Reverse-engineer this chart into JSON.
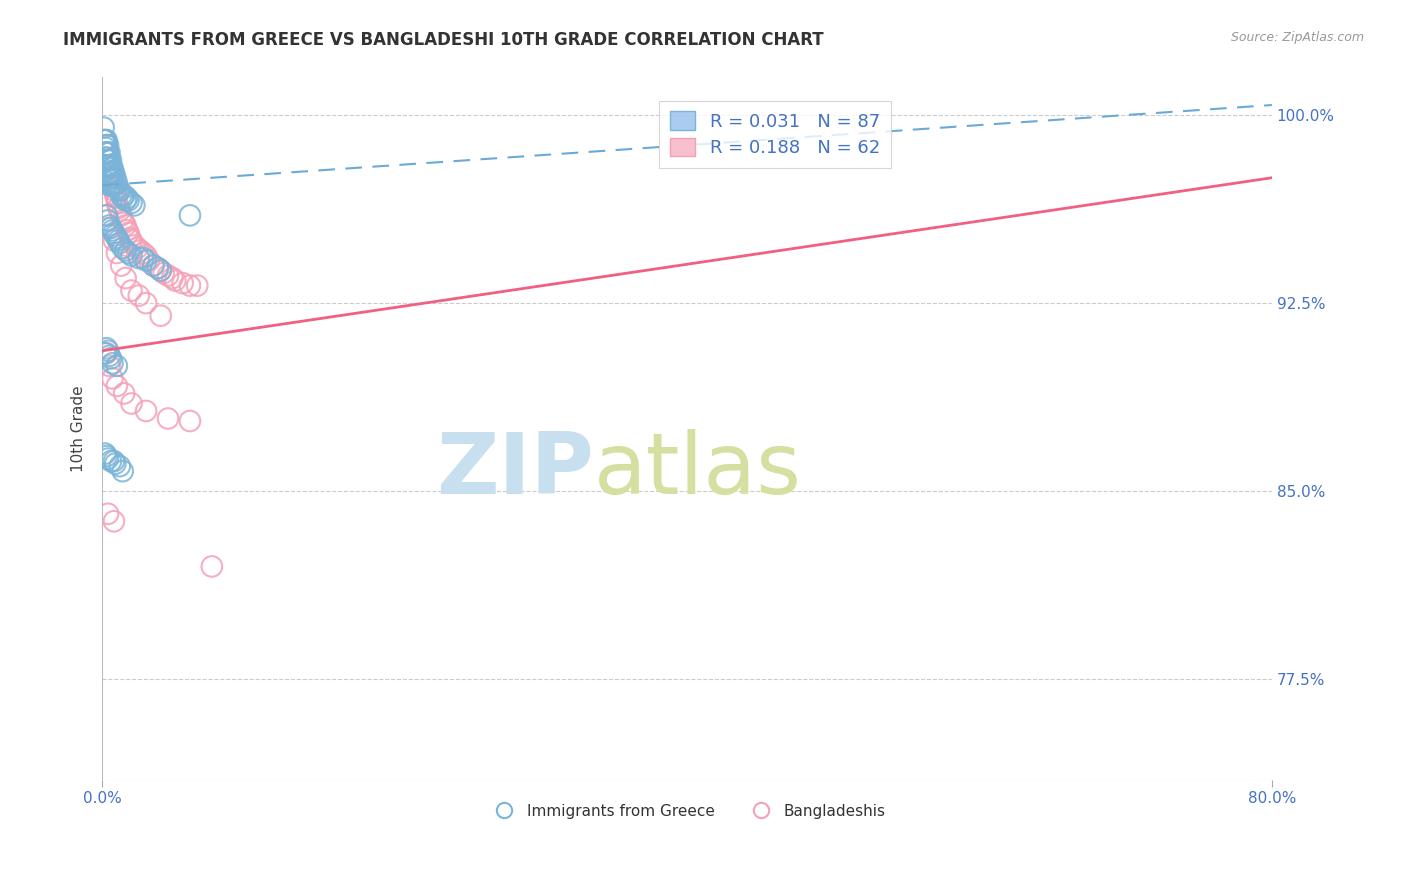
{
  "title": "IMMIGRANTS FROM GREECE VS BANGLADESHI 10TH GRADE CORRELATION CHART",
  "source_text": "Source: ZipAtlas.com",
  "ylabel": "10th Grade",
  "xlim": [
    0.0,
    0.8
  ],
  "ylim": [
    0.735,
    1.015
  ],
  "xticks": [
    0.0,
    0.8
  ],
  "xtick_labels": [
    "0.0%",
    "80.0%"
  ],
  "ytick_values": [
    0.775,
    0.85,
    0.925,
    1.0
  ],
  "ytick_labels": [
    "77.5%",
    "85.0%",
    "92.5%",
    "100.0%"
  ],
  "legend_blue_label": "Immigrants from Greece",
  "legend_pink_label": "Bangladeshis",
  "blue_color": "#7ab4d8",
  "pink_color": "#f5a0b5",
  "trendline_blue_color": "#6aaad4",
  "trendline_pink_color": "#f06080",
  "background_color": "#ffffff",
  "grid_color": "#cccccc",
  "title_color": "#333333",
  "source_color": "#999999",
  "axis_label_color": "#4472c4",
  "watermark_zip_color": "#c8dff0",
  "watermark_atlas_color": "#dde8a8",
  "blue_scatter_x": [
    0.001,
    0.001,
    0.002,
    0.002,
    0.002,
    0.002,
    0.003,
    0.003,
    0.003,
    0.003,
    0.003,
    0.003,
    0.004,
    0.004,
    0.004,
    0.004,
    0.004,
    0.004,
    0.005,
    0.005,
    0.005,
    0.005,
    0.005,
    0.005,
    0.006,
    0.006,
    0.006,
    0.006,
    0.006,
    0.007,
    0.007,
    0.007,
    0.007,
    0.008,
    0.008,
    0.008,
    0.009,
    0.009,
    0.01,
    0.01,
    0.011,
    0.012,
    0.013,
    0.014,
    0.015,
    0.016,
    0.017,
    0.018,
    0.02,
    0.022,
    0.003,
    0.004,
    0.005,
    0.006,
    0.007,
    0.008,
    0.009,
    0.01,
    0.011,
    0.012,
    0.014,
    0.016,
    0.018,
    0.02,
    0.025,
    0.028,
    0.03,
    0.035,
    0.038,
    0.04,
    0.002,
    0.003,
    0.004,
    0.005,
    0.006,
    0.007,
    0.01,
    0.06,
    0.002,
    0.003,
    0.004,
    0.006,
    0.008,
    0.009,
    0.012,
    0.014
  ],
  "blue_scatter_y": [
    0.995,
    0.99,
    0.99,
    0.987,
    0.985,
    0.983,
    0.99,
    0.988,
    0.985,
    0.983,
    0.98,
    0.978,
    0.988,
    0.985,
    0.982,
    0.979,
    0.976,
    0.973,
    0.985,
    0.982,
    0.98,
    0.977,
    0.975,
    0.972,
    0.982,
    0.98,
    0.977,
    0.975,
    0.972,
    0.979,
    0.977,
    0.975,
    0.972,
    0.977,
    0.975,
    0.972,
    0.975,
    0.972,
    0.973,
    0.971,
    0.97,
    0.97,
    0.968,
    0.967,
    0.968,
    0.966,
    0.967,
    0.966,
    0.965,
    0.964,
    0.96,
    0.958,
    0.956,
    0.955,
    0.954,
    0.953,
    0.952,
    0.951,
    0.95,
    0.949,
    0.947,
    0.946,
    0.945,
    0.944,
    0.943,
    0.943,
    0.942,
    0.94,
    0.939,
    0.938,
    0.905,
    0.907,
    0.906,
    0.904,
    0.903,
    0.901,
    0.9,
    0.96,
    0.865,
    0.864,
    0.863,
    0.862,
    0.862,
    0.861,
    0.86,
    0.858
  ],
  "pink_scatter_x": [
    0.002,
    0.003,
    0.003,
    0.004,
    0.004,
    0.005,
    0.005,
    0.006,
    0.007,
    0.007,
    0.008,
    0.009,
    0.01,
    0.01,
    0.011,
    0.012,
    0.013,
    0.014,
    0.015,
    0.016,
    0.017,
    0.018,
    0.019,
    0.02,
    0.022,
    0.024,
    0.026,
    0.028,
    0.03,
    0.032,
    0.035,
    0.038,
    0.04,
    0.042,
    0.045,
    0.048,
    0.05,
    0.055,
    0.06,
    0.065,
    0.003,
    0.005,
    0.008,
    0.01,
    0.013,
    0.016,
    0.02,
    0.025,
    0.03,
    0.04,
    0.003,
    0.005,
    0.007,
    0.01,
    0.015,
    0.02,
    0.03,
    0.045,
    0.06,
    0.075,
    0.004,
    0.008
  ],
  "pink_scatter_y": [
    0.99,
    0.988,
    0.985,
    0.985,
    0.982,
    0.98,
    0.976,
    0.975,
    0.975,
    0.972,
    0.97,
    0.968,
    0.967,
    0.965,
    0.963,
    0.962,
    0.96,
    0.958,
    0.957,
    0.956,
    0.954,
    0.953,
    0.951,
    0.95,
    0.948,
    0.947,
    0.946,
    0.945,
    0.944,
    0.942,
    0.94,
    0.939,
    0.938,
    0.937,
    0.936,
    0.935,
    0.934,
    0.933,
    0.932,
    0.932,
    0.96,
    0.955,
    0.95,
    0.945,
    0.94,
    0.935,
    0.93,
    0.928,
    0.925,
    0.92,
    0.905,
    0.9,
    0.895,
    0.892,
    0.889,
    0.885,
    0.882,
    0.879,
    0.878,
    0.82,
    0.841,
    0.838
  ],
  "blue_trend": [
    0.0,
    0.8,
    0.972,
    1.004
  ],
  "pink_trend": [
    0.0,
    0.8,
    0.906,
    0.975
  ]
}
